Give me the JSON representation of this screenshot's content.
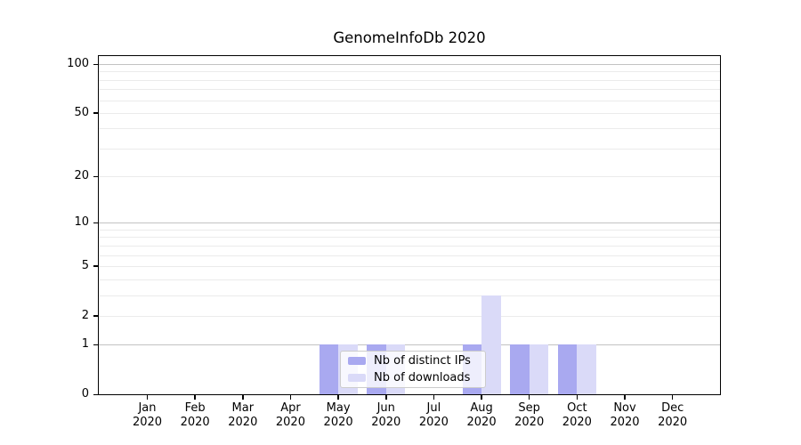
{
  "title": "GenomeInfoDb 2020",
  "chart_data": {
    "type": "bar",
    "title": "GenomeInfoDb 2020",
    "categories": [
      "Jan",
      "Feb",
      "Mar",
      "Apr",
      "May",
      "Jun",
      "Jul",
      "Aug",
      "Sep",
      "Oct",
      "Nov",
      "Dec"
    ],
    "year": "2020",
    "series": [
      {
        "name": "Nb of distinct IPs",
        "color": "#a9a9f0",
        "values": [
          0,
          0,
          0,
          0,
          1,
          1,
          0,
          1,
          1,
          1,
          0,
          0
        ]
      },
      {
        "name": "Nb of downloads",
        "color": "#dadaf8",
        "values": [
          0,
          0,
          0,
          0,
          1,
          1,
          0,
          3,
          1,
          1,
          0,
          0
        ]
      }
    ],
    "xlabel": "",
    "ylabel": "",
    "y_scale": "log1p",
    "ylim": [
      0,
      112
    ],
    "y_ticks": [
      0,
      1,
      2,
      5,
      10,
      20,
      50,
      100
    ],
    "grid": {
      "on": true,
      "major_values": [
        1,
        10,
        100
      ],
      "minor_values": [
        2,
        3,
        4,
        5,
        6,
        7,
        8,
        9,
        20,
        30,
        40,
        50,
        60,
        70,
        80,
        90
      ],
      "major_color": "#c3c3c3",
      "minor_color": "#ebebeb"
    },
    "legend": {
      "position": "inside-lower-center-left"
    }
  }
}
